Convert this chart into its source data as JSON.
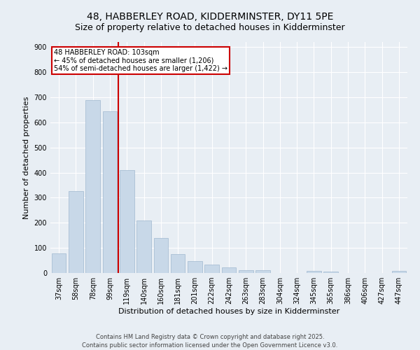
{
  "title_line1": "48, HABBERLEY ROAD, KIDDERMINSTER, DY11 5PE",
  "title_line2": "Size of property relative to detached houses in Kidderminster",
  "xlabel": "Distribution of detached houses by size in Kidderminster",
  "ylabel": "Number of detached properties",
  "categories": [
    "37sqm",
    "58sqm",
    "78sqm",
    "99sqm",
    "119sqm",
    "140sqm",
    "160sqm",
    "181sqm",
    "201sqm",
    "222sqm",
    "242sqm",
    "263sqm",
    "283sqm",
    "304sqm",
    "324sqm",
    "345sqm",
    "365sqm",
    "386sqm",
    "406sqm",
    "427sqm",
    "447sqm"
  ],
  "values": [
    78,
    325,
    690,
    645,
    410,
    208,
    140,
    75,
    47,
    33,
    22,
    12,
    10,
    0,
    0,
    8,
    5,
    0,
    0,
    0,
    7
  ],
  "bar_color": "#c8d8e8",
  "bar_edge_color": "#a0b8d0",
  "vline_pos": 3.5,
  "vline_color": "#cc0000",
  "annotation_text": "48 HABBERLEY ROAD: 103sqm\n← 45% of detached houses are smaller (1,206)\n54% of semi-detached houses are larger (1,422) →",
  "annotation_box_color": "#ffffff",
  "annotation_box_edge_color": "#cc0000",
  "ylim": [
    0,
    920
  ],
  "yticks": [
    0,
    100,
    200,
    300,
    400,
    500,
    600,
    700,
    800,
    900
  ],
  "background_color": "#e8eef4",
  "footer_line1": "Contains HM Land Registry data © Crown copyright and database right 2025.",
  "footer_line2": "Contains public sector information licensed under the Open Government Licence v3.0.",
  "title_fontsize": 10,
  "subtitle_fontsize": 9,
  "axis_label_fontsize": 8,
  "tick_fontsize": 7,
  "annotation_fontsize": 7,
  "footer_fontsize": 6
}
